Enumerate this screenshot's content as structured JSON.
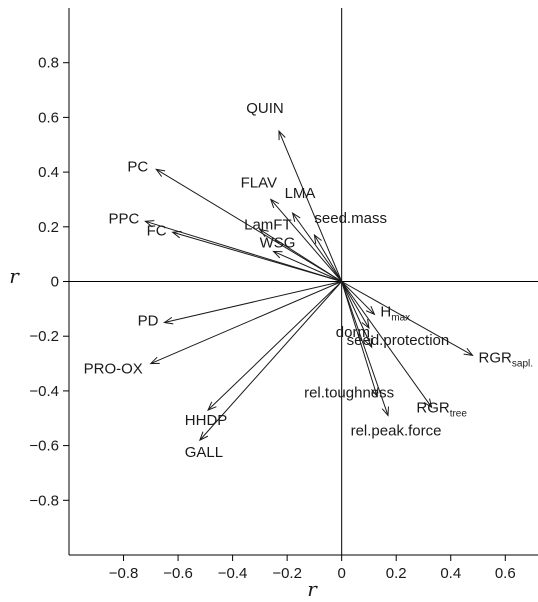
{
  "chart_data": {
    "type": "scatter",
    "subtype": "correlation-biplot-arrows",
    "xlabel": "r",
    "ylabel": "r",
    "xlim": [
      -1.0,
      0.72
    ],
    "ylim": [
      -1.0,
      1.0
    ],
    "x_ticks": [
      -0.8,
      -0.6,
      -0.4,
      -0.2,
      0,
      0.2,
      0.4,
      0.6
    ],
    "x_tick_labels": [
      "−0.8",
      "−0.6",
      "−0.4",
      "−0.2",
      "0",
      "0.2",
      "0.4",
      "0.6"
    ],
    "y_ticks": [
      0.8,
      0.6,
      0.4,
      0.2,
      0,
      -0.2,
      -0.4,
      -0.6,
      -0.8
    ],
    "y_tick_labels": [
      "0.8",
      "0.6",
      "0.4",
      "0.2",
      "0",
      "−0.2",
      "−0.4",
      "−0.6",
      "−0.8"
    ],
    "grid": false,
    "reference_lines": [
      "x=0",
      "y=0"
    ],
    "arrow_color": "#1a1a1a",
    "vectors": [
      {
        "label": "QUIN",
        "x": -0.23,
        "y": 0.55
      },
      {
        "label": "PC",
        "x": -0.68,
        "y": 0.41
      },
      {
        "label": "FLAV",
        "x": -0.26,
        "y": 0.3
      },
      {
        "label": "LMA",
        "x": -0.18,
        "y": 0.25
      },
      {
        "label": "PPC",
        "x": -0.72,
        "y": 0.22
      },
      {
        "label": "LamFT",
        "x": -0.3,
        "y": 0.19
      },
      {
        "label": "seed.mass",
        "x": -0.1,
        "y": 0.17
      },
      {
        "label": "FC",
        "x": -0.62,
        "y": 0.18
      },
      {
        "label": "WSG",
        "x": -0.25,
        "y": 0.11
      },
      {
        "label": "PD",
        "x": -0.65,
        "y": -0.15
      },
      {
        "label": "PRO-OX",
        "x": -0.7,
        "y": -0.3
      },
      {
        "label": "HHDP",
        "x": -0.49,
        "y": -0.47
      },
      {
        "label": "GALL",
        "x": -0.52,
        "y": -0.58
      },
      {
        "label": "dorm.",
        "x": 0.1,
        "y": -0.17
      },
      {
        "label": "H",
        "label_sub": "max",
        "x": 0.12,
        "y": -0.12
      },
      {
        "label": "seed.protection",
        "x": 0.11,
        "y": -0.24
      },
      {
        "label": "RGR",
        "label_sub": "sapl.",
        "x": 0.48,
        "y": -0.27
      },
      {
        "label": "rel.toughness",
        "x": 0.13,
        "y": -0.42
      },
      {
        "label": "RGR",
        "label_sub": "tree",
        "x": 0.33,
        "y": -0.46
      },
      {
        "label": "rel.peak.force",
        "x": 0.17,
        "y": -0.49
      }
    ]
  }
}
